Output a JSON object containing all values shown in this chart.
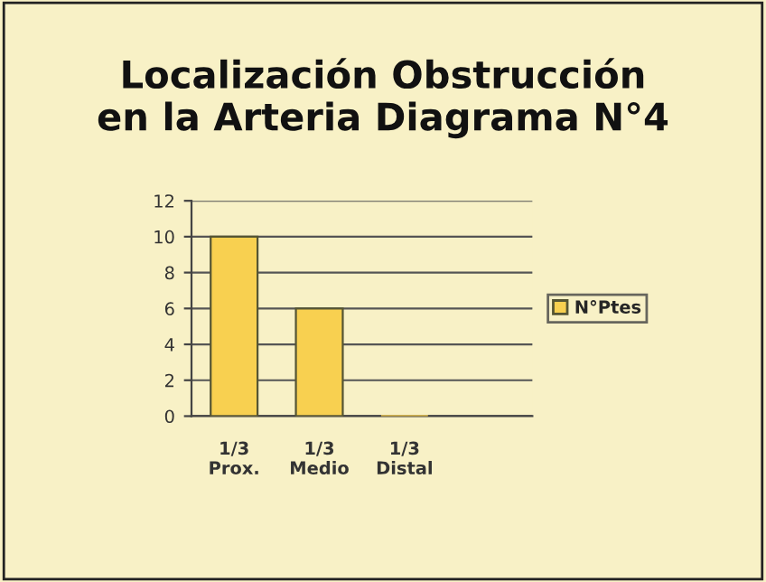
{
  "chart_data": {
    "type": "bar",
    "title": "Localización Obstrucción\nen la Arteria Diagrama N°4",
    "categories": [
      "1/3\nProx.",
      "1/3\nMedio",
      "1/3\nDistal",
      null
    ],
    "series": [
      {
        "name": "N°Ptes",
        "color": "#f8d050",
        "values": [
          10,
          6,
          0,
          null
        ]
      }
    ],
    "ylim": [
      0,
      12
    ],
    "yticks": [
      0,
      2,
      4,
      6,
      8,
      10,
      12
    ],
    "grid": "y",
    "legend": "right"
  }
}
